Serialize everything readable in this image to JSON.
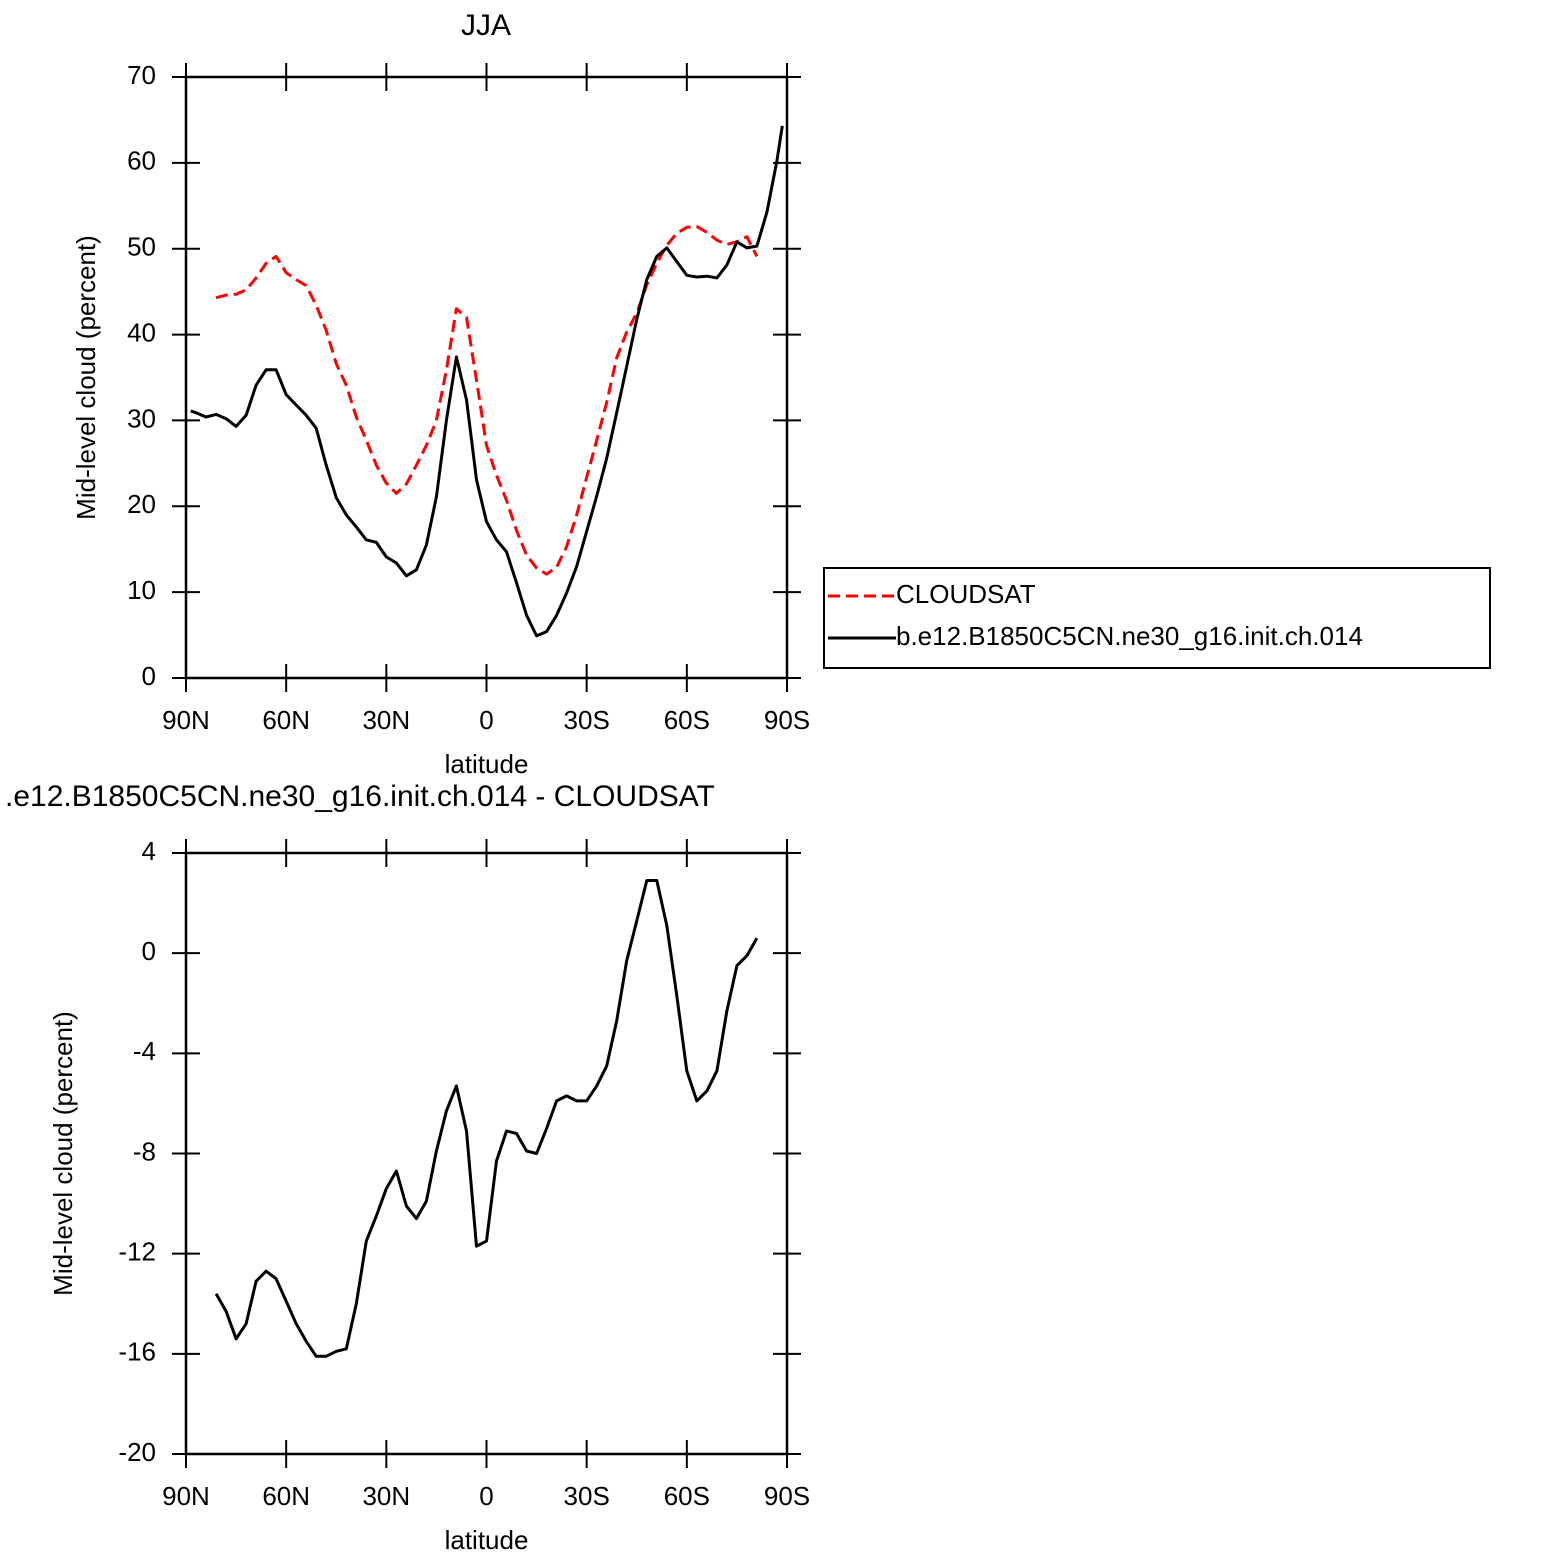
{
  "chart_data": [
    {
      "type": "line",
      "title": "JJA",
      "x_label": "latitude",
      "y_label": "Mid-level cloud (percent)",
      "x": [
        88.6,
        87,
        84,
        81,
        78,
        75,
        72,
        69,
        66,
        63,
        60,
        57,
        54,
        51,
        48,
        45,
        42,
        39,
        36,
        33,
        30,
        27,
        24,
        21,
        18,
        15,
        12,
        9,
        6,
        3,
        0,
        -3,
        -6,
        -9,
        -12,
        -15,
        -18,
        -21,
        -24,
        -27,
        -30,
        -33,
        -36,
        -39,
        -42,
        -45,
        -48,
        -51,
        -54,
        -57,
        -60,
        -63,
        -66,
        -69,
        -72,
        -75,
        -78,
        -81,
        -84,
        -87,
        -88.6
      ],
      "xlim": [
        90,
        -90
      ],
      "xticks": [
        {
          "value": 90,
          "label": "90N"
        },
        {
          "value": 60,
          "label": "60N"
        },
        {
          "value": 30,
          "label": "30N"
        },
        0,
        {
          "value": -30,
          "label": "30S"
        },
        {
          "value": -60,
          "label": "60S"
        },
        {
          "value": -90,
          "label": "90S"
        }
      ],
      "ylim": [
        0,
        70
      ],
      "yticks": [
        0,
        10,
        20,
        30,
        40,
        50,
        60,
        70
      ],
      "legend": "right",
      "series": [
        {
          "name": "CLOUDSAT",
          "color": "#ff0000",
          "linestyle": "dashed",
          "values": [
            null,
            null,
            null,
            44.3,
            44.6,
            44.7,
            45.2,
            46.6,
            48.3,
            49.1,
            47.2,
            46.4,
            45.7,
            43.4,
            40.5,
            36.6,
            34.1,
            30.4,
            27.7,
            24.8,
            22.7,
            21.5,
            22.6,
            24.8,
            27.1,
            30.0,
            35.9,
            43.0,
            42.0,
            34.7,
            27.1,
            23.6,
            20.7,
            17.2,
            14.3,
            12.8,
            12.1,
            12.9,
            15.3,
            19.0,
            23.4,
            27.7,
            32.1,
            37.3,
            40.3,
            42.5,
            45.8,
            48.3,
            50.4,
            51.8,
            52.5,
            52.6,
            51.9,
            51.0,
            50.5,
            50.8,
            51.4,
            49.1,
            null,
            null,
            null
          ]
        },
        {
          "name": "b.e12.B1850C5CN.ne30_g16.init.ch.014",
          "color": "#000000",
          "linestyle": "solid",
          "values": [
            31.1,
            30.9,
            30.4,
            30.7,
            30.2,
            29.3,
            30.6,
            34.1,
            35.9,
            35.9,
            33.0,
            31.8,
            30.6,
            29.1,
            24.8,
            21.0,
            19.0,
            17.6,
            16.1,
            15.8,
            14.1,
            13.4,
            11.9,
            12.6,
            15.5,
            21.1,
            30.0,
            37.4,
            32.4,
            23.1,
            18.2,
            16.1,
            14.7,
            11.1,
            7.3,
            4.9,
            5.4,
            7.3,
            9.9,
            13.0,
            17.1,
            21.2,
            25.6,
            30.9,
            36.3,
            41.8,
            46.4,
            49.1,
            50.1,
            48.5,
            46.9,
            46.7,
            46.8,
            46.6,
            48.1,
            50.8,
            50.1,
            50.3,
            54.3,
            60.3,
            64.3
          ]
        }
      ]
    },
    {
      "type": "line",
      "title": ".e12.B1850C5CN.ne30_g16.init.ch.014 - CLOUDSAT",
      "x_label": "latitude",
      "y_label": "Mid-level cloud (percent)",
      "x": [
        81,
        78,
        75,
        72,
        69,
        66,
        63,
        60,
        57,
        54,
        51,
        48,
        45,
        42,
        39,
        36,
        33,
        30,
        27,
        24,
        21,
        18,
        15,
        12,
        9,
        6,
        3,
        0,
        -3,
        -6,
        -9,
        -12,
        -15,
        -18,
        -21,
        -24,
        -27,
        -30,
        -33,
        -36,
        -39,
        -42,
        -45,
        -48,
        -51,
        -54,
        -57,
        -60,
        -63,
        -66,
        -69,
        -72,
        -75,
        -78,
        -81
      ],
      "xlim": [
        90,
        -90
      ],
      "xticks": [
        {
          "value": 90,
          "label": "90N"
        },
        {
          "value": 60,
          "label": "60N"
        },
        {
          "value": 30,
          "label": "30N"
        },
        0,
        {
          "value": -30,
          "label": "30S"
        },
        {
          "value": -60,
          "label": "60S"
        },
        {
          "value": -90,
          "label": "90S"
        }
      ],
      "ylim": [
        -20,
        4
      ],
      "yticks": [
        -20,
        -16,
        -12,
        -8,
        -4,
        0,
        4
      ],
      "series": [
        {
          "color": "#000000",
          "linestyle": "solid",
          "values": [
            -13.6,
            -14.3,
            -15.4,
            -14.8,
            -13.1,
            -12.7,
            -13.0,
            -13.9,
            -14.8,
            -15.5,
            -16.1,
            -16.1,
            -15.9,
            -15.8,
            -14.0,
            -11.5,
            -10.5,
            -9.4,
            -8.7,
            -10.1,
            -10.6,
            -9.9,
            -7.9,
            -6.3,
            -5.3,
            -7.1,
            -11.7,
            -11.5,
            -8.3,
            -7.1,
            -7.2,
            -7.9,
            -8.0,
            -7.0,
            -5.9,
            -5.7,
            -5.9,
            -5.9,
            -5.3,
            -4.5,
            -2.7,
            -0.3,
            1.3,
            2.9,
            2.9,
            1.1,
            -1.7,
            -4.7,
            -5.9,
            -5.5,
            -4.7,
            -2.3,
            -0.5,
            -0.1,
            0.6
          ]
        }
      ]
    }
  ]
}
